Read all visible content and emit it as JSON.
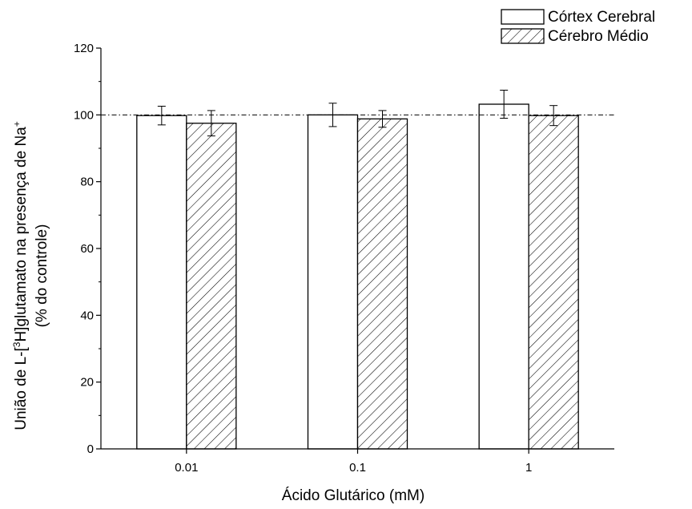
{
  "chart_data": {
    "type": "bar",
    "categories": [
      "0.01",
      "0.1",
      "1"
    ],
    "series": [
      {
        "name": "Córtex Cerebral",
        "values": [
          99.8,
          100.0,
          103.2
        ],
        "errors": [
          2.8,
          3.5,
          4.2
        ],
        "fill": "#ffffff",
        "pattern": "none"
      },
      {
        "name": "Cérebro Médio",
        "values": [
          97.5,
          98.8,
          99.8
        ],
        "errors": [
          3.8,
          2.5,
          3.0
        ],
        "fill": "#ffffff",
        "pattern": "hatch"
      }
    ],
    "reference_line": 100,
    "xlabel": "Ácido Glutárico (mM)",
    "ylabel_line1": "União de L-[",
    "ylabel_sup1": "3",
    "ylabel_line1b": "H]glutamato na presença de Na",
    "ylabel_sup2": "+",
    "ylabel_line2": "(% do controle)",
    "ylim": [
      0,
      120
    ],
    "yticks": [
      0,
      20,
      40,
      60,
      80,
      100,
      120
    ],
    "grid": false,
    "legend_position": "top-right",
    "bar_stroke": "#000000"
  }
}
